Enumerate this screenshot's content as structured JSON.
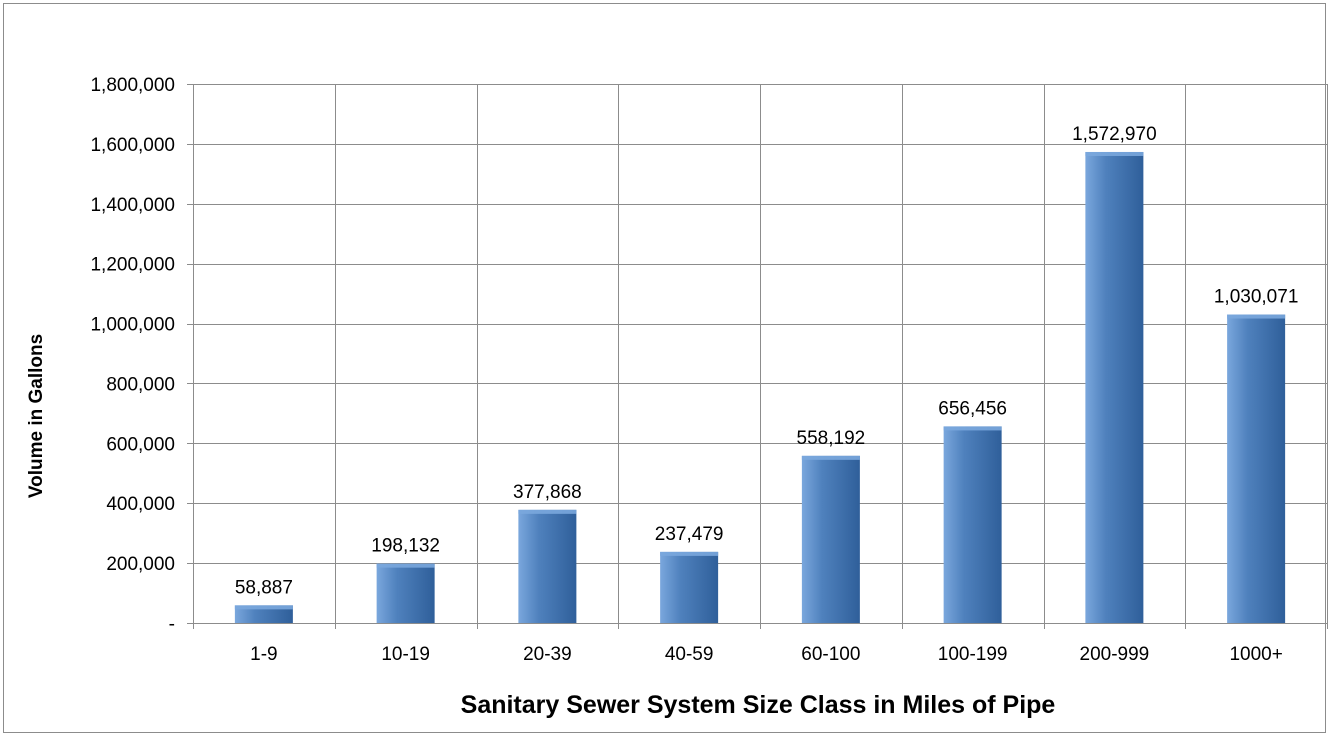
{
  "chart_data": {
    "type": "bar",
    "title": "",
    "xlabel": "Sanitary Sewer System Size Class in Miles of Pipe",
    "ylabel": "Volume in Gallons",
    "categories": [
      "1-9",
      "10-19",
      "20-39",
      "40-59",
      "60-100",
      "100-199",
      "200-999",
      "1000+"
    ],
    "values": [
      58887,
      198132,
      377868,
      237479,
      558192,
      656456,
      1572970,
      1030071
    ],
    "data_labels": [
      "58,887",
      "198,132",
      "377,868",
      "237,479",
      "558,192",
      "656,456",
      "1,572,970",
      "1,030,071"
    ],
    "ylim": [
      0,
      1800000
    ],
    "yticks": [
      0,
      200000,
      400000,
      600000,
      800000,
      1000000,
      1200000,
      1400000,
      1600000,
      1800000
    ],
    "ytick_labels": [
      "-",
      "200,000",
      "400,000",
      "600,000",
      "800,000",
      "1,000,000",
      "1,200,000",
      "1,400,000",
      "1,600,000",
      "1,800,000"
    ],
    "grid": true,
    "legend": "none",
    "colors": {
      "bar": "#4f81bd",
      "bar_dark": "#2f5f9a",
      "bar_light": "#7aa7dd",
      "grid": "#8c8c8c"
    }
  }
}
